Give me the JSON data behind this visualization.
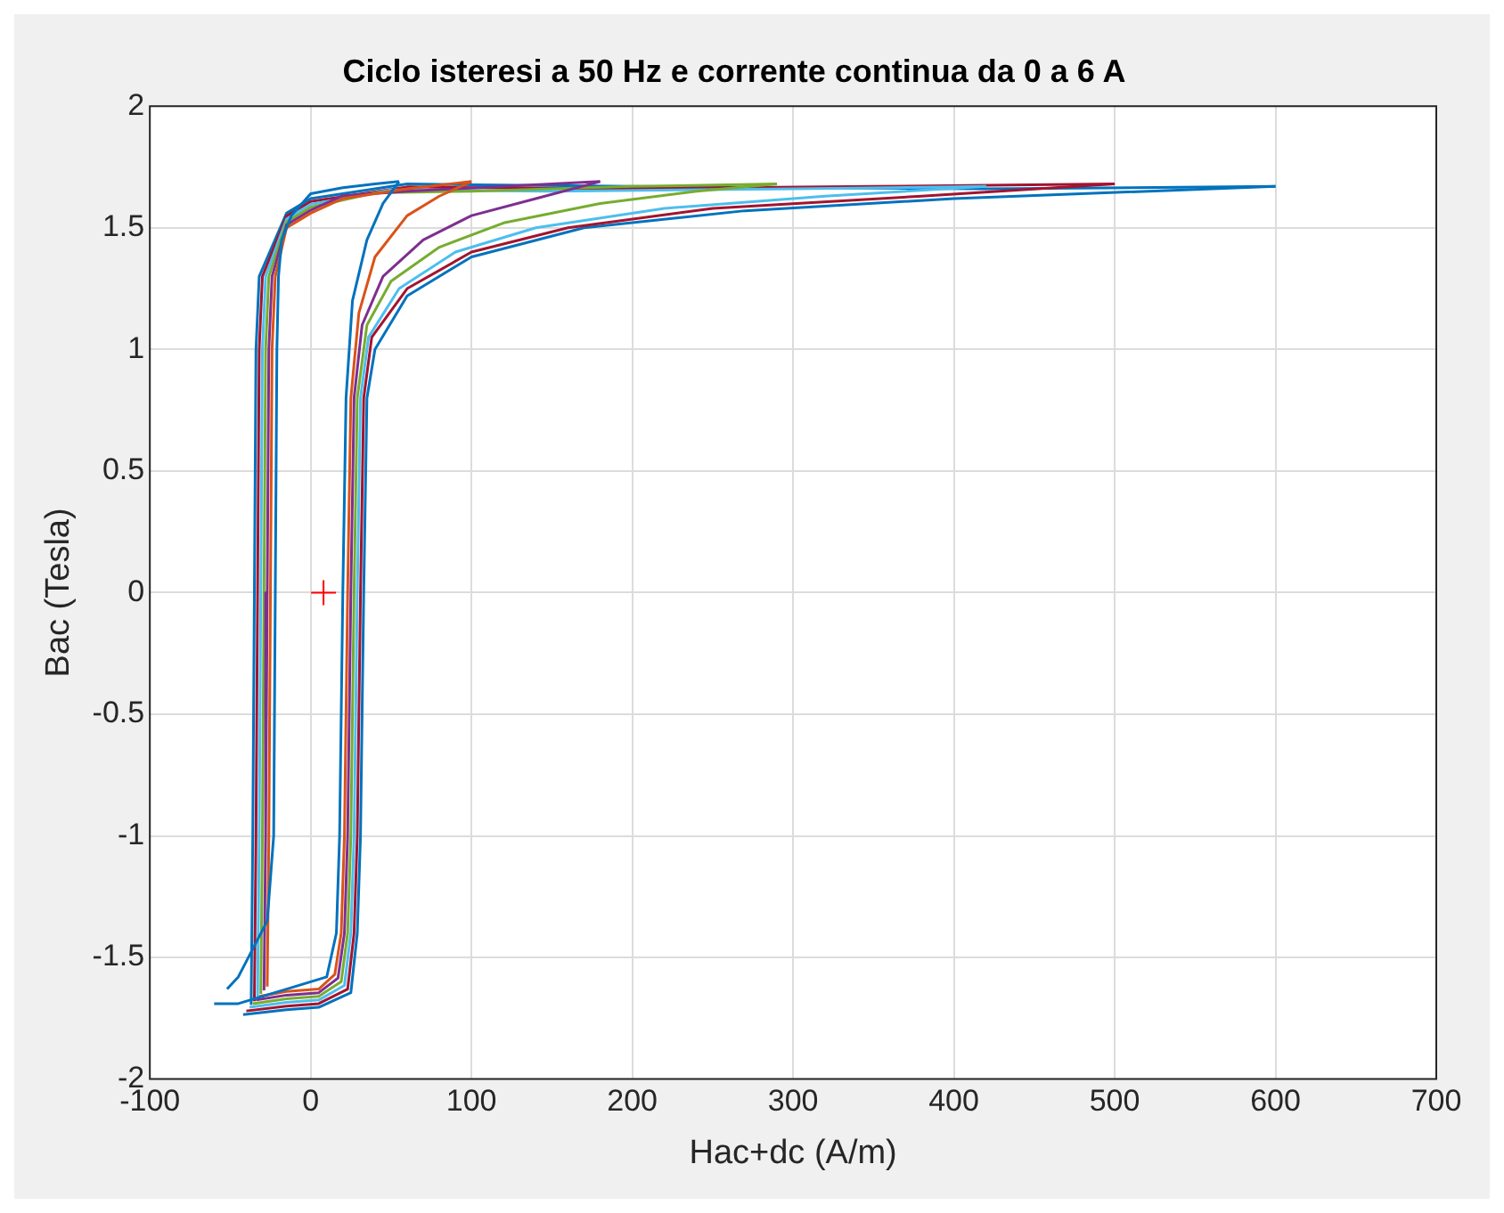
{
  "chart_data": {
    "type": "line",
    "title": "Ciclo isteresi a 50 Hz e corrente continua da 0 a 6 A",
    "xlabel": "Hac+dc (A/m)",
    "ylabel": "Bac (Tesla)",
    "xlim": [
      -100,
      700
    ],
    "xticks": [
      -100,
      0,
      100,
      200,
      300,
      400,
      500,
      600,
      700
    ],
    "ylim": [
      -2,
      2
    ],
    "yticks": [
      -2,
      -1.5,
      -1,
      -0.5,
      0,
      0.5,
      1,
      1.5,
      2
    ],
    "grid": true,
    "marker": "none",
    "line_style": "solid",
    "series": [
      {
        "color": "#0072bd",
        "x": [
          -60,
          -45,
          -10,
          10,
          16,
          18,
          20,
          22,
          26,
          35,
          45,
          55
        ],
        "values": [
          -1.69,
          -1.69,
          -1.62,
          -1.58,
          -1.4,
          -1,
          0,
          0.8,
          1.2,
          1.45,
          1.6,
          1.69
        ]
      },
      {
        "color": "#0072bd",
        "x": [
          55,
          40,
          20,
          0,
          -12,
          -18,
          -20,
          -21,
          -22,
          -23,
          -27,
          -45,
          -52
        ],
        "values": [
          1.69,
          1.68,
          1.665,
          1.64,
          1.55,
          1.45,
          1.3,
          1,
          0,
          -1,
          -1.35,
          -1.58,
          -1.63
        ]
      },
      {
        "color": "#d95319",
        "x": [
          -32,
          -15,
          5,
          15,
          19,
          21,
          23,
          25,
          30,
          40,
          60,
          80,
          100
        ],
        "values": [
          -1.66,
          -1.64,
          -1.63,
          -1.57,
          -1.4,
          -1,
          0,
          0.8,
          1.15,
          1.38,
          1.55,
          1.63,
          1.69
        ]
      },
      {
        "color": "#d95319",
        "x": [
          100,
          60,
          20,
          0,
          -15,
          -22,
          -24,
          -25,
          -26,
          -27
        ],
        "values": [
          1.69,
          1.66,
          1.62,
          1.56,
          1.5,
          1.3,
          1,
          0,
          -1,
          -1.62
        ]
      },
      {
        "color": "#7e2f8e",
        "x": [
          -34,
          -15,
          5,
          17,
          21,
          23,
          25,
          27,
          32,
          45,
          70,
          100,
          140,
          180
        ],
        "values": [
          -1.675,
          -1.655,
          -1.645,
          -1.585,
          -1.4,
          -1,
          0,
          0.8,
          1.1,
          1.3,
          1.45,
          1.55,
          1.62,
          1.69
        ]
      },
      {
        "color": "#7e2f8e",
        "x": [
          180,
          120,
          60,
          20,
          0,
          -15,
          -24,
          -26,
          -27,
          -28,
          -29
        ],
        "values": [
          1.69,
          1.67,
          1.65,
          1.632,
          1.572,
          1.512,
          1.3,
          1,
          0,
          -1,
          -1.635
        ]
      },
      {
        "color": "#77ac30",
        "x": [
          -36,
          -15,
          5,
          19,
          23,
          25,
          27,
          29,
          35,
          50,
          80,
          120,
          180,
          240,
          290
        ],
        "values": [
          -1.69,
          -1.67,
          -1.66,
          -1.6,
          -1.4,
          -1,
          0,
          0.8,
          1.1,
          1.28,
          1.42,
          1.52,
          1.6,
          1.65,
          1.68
        ]
      },
      {
        "color": "#77ac30",
        "x": [
          290,
          200,
          100,
          40,
          0,
          -15,
          -26,
          -28,
          -29,
          -30,
          -31
        ],
        "values": [
          1.68,
          1.67,
          1.65,
          1.644,
          1.584,
          1.524,
          1.3,
          1,
          0,
          -1,
          -1.65
        ]
      },
      {
        "color": "#4dbeee",
        "x": [
          -38,
          -15,
          5,
          21,
          25,
          27,
          29,
          31,
          36,
          55,
          90,
          140,
          220,
          320,
          420
        ],
        "values": [
          -1.705,
          -1.685,
          -1.675,
          -1.615,
          -1.4,
          -1,
          0,
          0.8,
          1.05,
          1.25,
          1.4,
          1.5,
          1.58,
          1.63,
          1.67
        ]
      },
      {
        "color": "#4dbeee",
        "x": [
          420,
          300,
          150,
          50,
          0,
          -15,
          -28,
          -30,
          -31,
          -32,
          -33
        ],
        "values": [
          1.67,
          1.66,
          1.65,
          1.656,
          1.596,
          1.536,
          1.3,
          1,
          0,
          -1,
          -1.665
        ]
      },
      {
        "color": "#a2142f",
        "x": [
          -40,
          -15,
          5,
          23,
          27,
          29,
          31,
          33,
          38,
          60,
          100,
          160,
          250,
          380,
          500
        ],
        "values": [
          -1.72,
          -1.7,
          -1.69,
          -1.63,
          -1.4,
          -1,
          0,
          0.8,
          1.05,
          1.25,
          1.4,
          1.5,
          1.58,
          1.63,
          1.68
        ]
      },
      {
        "color": "#a2142f",
        "x": [
          500,
          350,
          180,
          60,
          0,
          -15,
          -30,
          -32,
          -33,
          -34,
          -35
        ],
        "values": [
          1.68,
          1.67,
          1.66,
          1.668,
          1.608,
          1.548,
          1.3,
          1,
          0,
          -1,
          -1.68
        ]
      },
      {
        "color": "#0072bd",
        "x": [
          -42,
          -15,
          5,
          25,
          29,
          31,
          33,
          35,
          40,
          60,
          100,
          170,
          270,
          400,
          600
        ],
        "values": [
          -1.735,
          -1.715,
          -1.705,
          -1.645,
          -1.4,
          -1,
          0,
          0.8,
          1,
          1.22,
          1.38,
          1.5,
          1.57,
          1.62,
          1.67
        ]
      },
      {
        "color": "#0072bd",
        "x": [
          600,
          420,
          200,
          60,
          0,
          -15,
          -32,
          -34,
          -35,
          -36,
          -37
        ],
        "values": [
          1.67,
          1.66,
          1.67,
          1.68,
          1.62,
          1.56,
          1.3,
          1,
          0,
          -1,
          -1.695
        ]
      },
      {
        "type": "scatter",
        "marker": "cross",
        "color": "#ff0000",
        "x": [
          8
        ],
        "values": [
          0
        ]
      }
    ]
  }
}
